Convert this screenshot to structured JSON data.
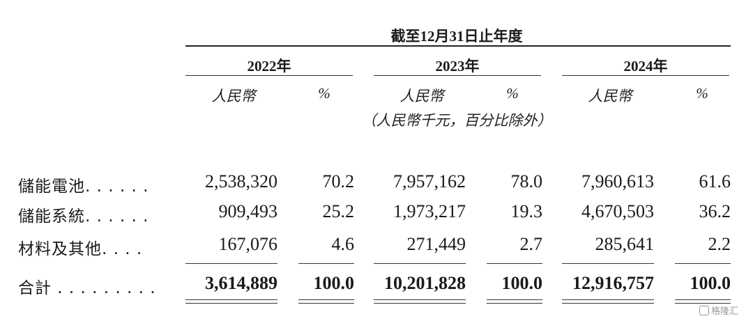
{
  "header": {
    "period": "截至12月31日止年度",
    "years": [
      "2022年",
      "2023年",
      "2024年"
    ],
    "unit_label": "人民幣",
    "pct_label": "%",
    "note": "（人民幣千元，百分比除外）"
  },
  "rows": [
    {
      "label": "儲能電池. . . . . .",
      "values": [
        "2,538,320",
        "70.2",
        "7,957,162",
        "78.0",
        "7,960,613",
        "61.6"
      ]
    },
    {
      "label": "儲能系統. . . . . .",
      "values": [
        "909,493",
        "25.2",
        "1,973,217",
        "19.3",
        "4,670,503",
        "36.2"
      ]
    },
    {
      "label": "材料及其他. . . .",
      "values": [
        "167,076",
        "4.6",
        "271,449",
        "2.7",
        "285,641",
        "2.2"
      ]
    }
  ],
  "total": {
    "label": "合計 . . . . . . . . .",
    "values": [
      "3,614,889",
      "100.0",
      "10,201,828",
      "100.0",
      "12,916,757",
      "100.0"
    ]
  },
  "watermark": "格隆汇"
}
